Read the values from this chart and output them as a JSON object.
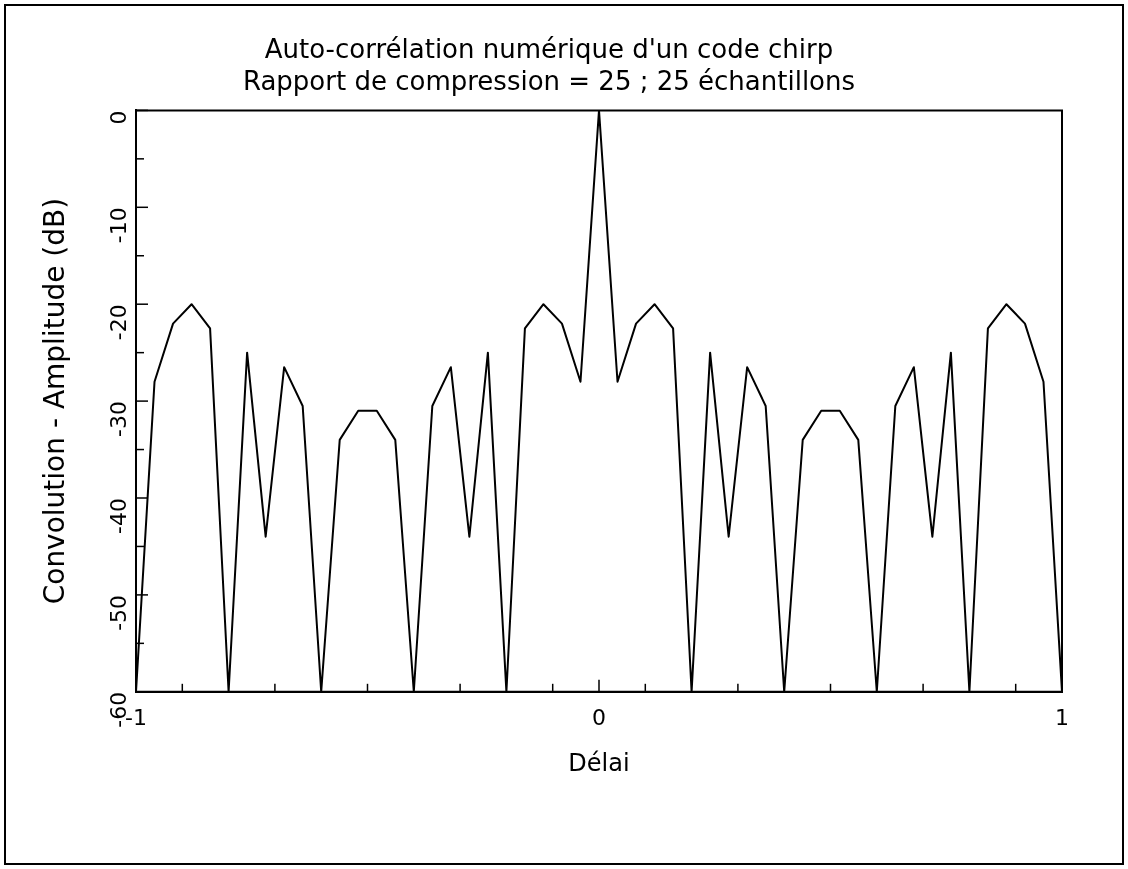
{
  "chart_data": {
    "type": "line",
    "title": "Auto-corrélation numérique d'un code chirp",
    "subtitle": "Rapport de compression = 25 ; 25 échantillons",
    "xlabel": "Délai",
    "ylabel": "Convolution - Amplitude (dB)",
    "x": [
      -1,
      -0.96,
      -0.92,
      -0.88,
      -0.84,
      -0.8,
      -0.76,
      -0.72,
      -0.68,
      -0.64,
      -0.6,
      -0.56,
      -0.52,
      -0.48,
      -0.44,
      -0.4,
      -0.36,
      -0.32,
      -0.28,
      -0.24,
      -0.2,
      -0.16,
      -0.12,
      -0.08,
      -0.04,
      0,
      0.04,
      0.08,
      0.12,
      0.16,
      0.2,
      0.24,
      0.28,
      0.32,
      0.36,
      0.4,
      0.44,
      0.48,
      0.52,
      0.56,
      0.6,
      0.64,
      0.68,
      0.72,
      0.76,
      0.8,
      0.84,
      0.88,
      0.92,
      0.96,
      1
    ],
    "series": [
      {
        "color": "#000000",
        "values": [
          -60,
          -28,
          -22,
          -20,
          -22.5,
          -60,
          -25,
          -44,
          -26.5,
          -30.5,
          -60,
          -34,
          -31,
          -31,
          -34,
          -60,
          -30.5,
          -26.5,
          -44,
          -25,
          -60,
          -22.5,
          -20,
          -22,
          -28,
          0,
          -28,
          -22,
          -20,
          -22.5,
          -60,
          -25,
          -44,
          -26.5,
          -30.5,
          -60,
          -34,
          -31,
          -31,
          -34,
          -60,
          -30.5,
          -26.5,
          -44,
          -25,
          -60,
          -22.5,
          -20,
          -22,
          -28,
          -60
        ]
      }
    ],
    "xlim": [
      -1,
      1
    ],
    "xticks": [
      -1,
      {
        "value": -0.9,
        "label": null
      },
      {
        "value": -0.7,
        "label": null
      },
      {
        "value": -0.5,
        "label": null
      },
      {
        "value": -0.3,
        "label": null
      },
      {
        "value": -0.1,
        "label": null
      },
      0,
      {
        "value": 0.1,
        "label": null
      },
      {
        "value": 0.3,
        "label": null
      },
      {
        "value": 0.5,
        "label": null
      },
      {
        "value": 0.7,
        "label": null
      },
      {
        "value": 0.9,
        "label": null
      },
      1
    ],
    "ylim": [
      -60,
      0
    ],
    "yticks": [
      -60,
      {
        "value": -55,
        "label": null
      },
      -50,
      {
        "value": -45,
        "label": null
      },
      -40,
      {
        "value": -35,
        "label": null
      },
      -30,
      {
        "value": -25,
        "label": null
      },
      -20,
      {
        "value": -15,
        "label": null
      },
      -10,
      {
        "value": -5,
        "label": null
      },
      0
    ],
    "grid": false,
    "legend": false,
    "marker": "none",
    "line_style": "solid"
  }
}
